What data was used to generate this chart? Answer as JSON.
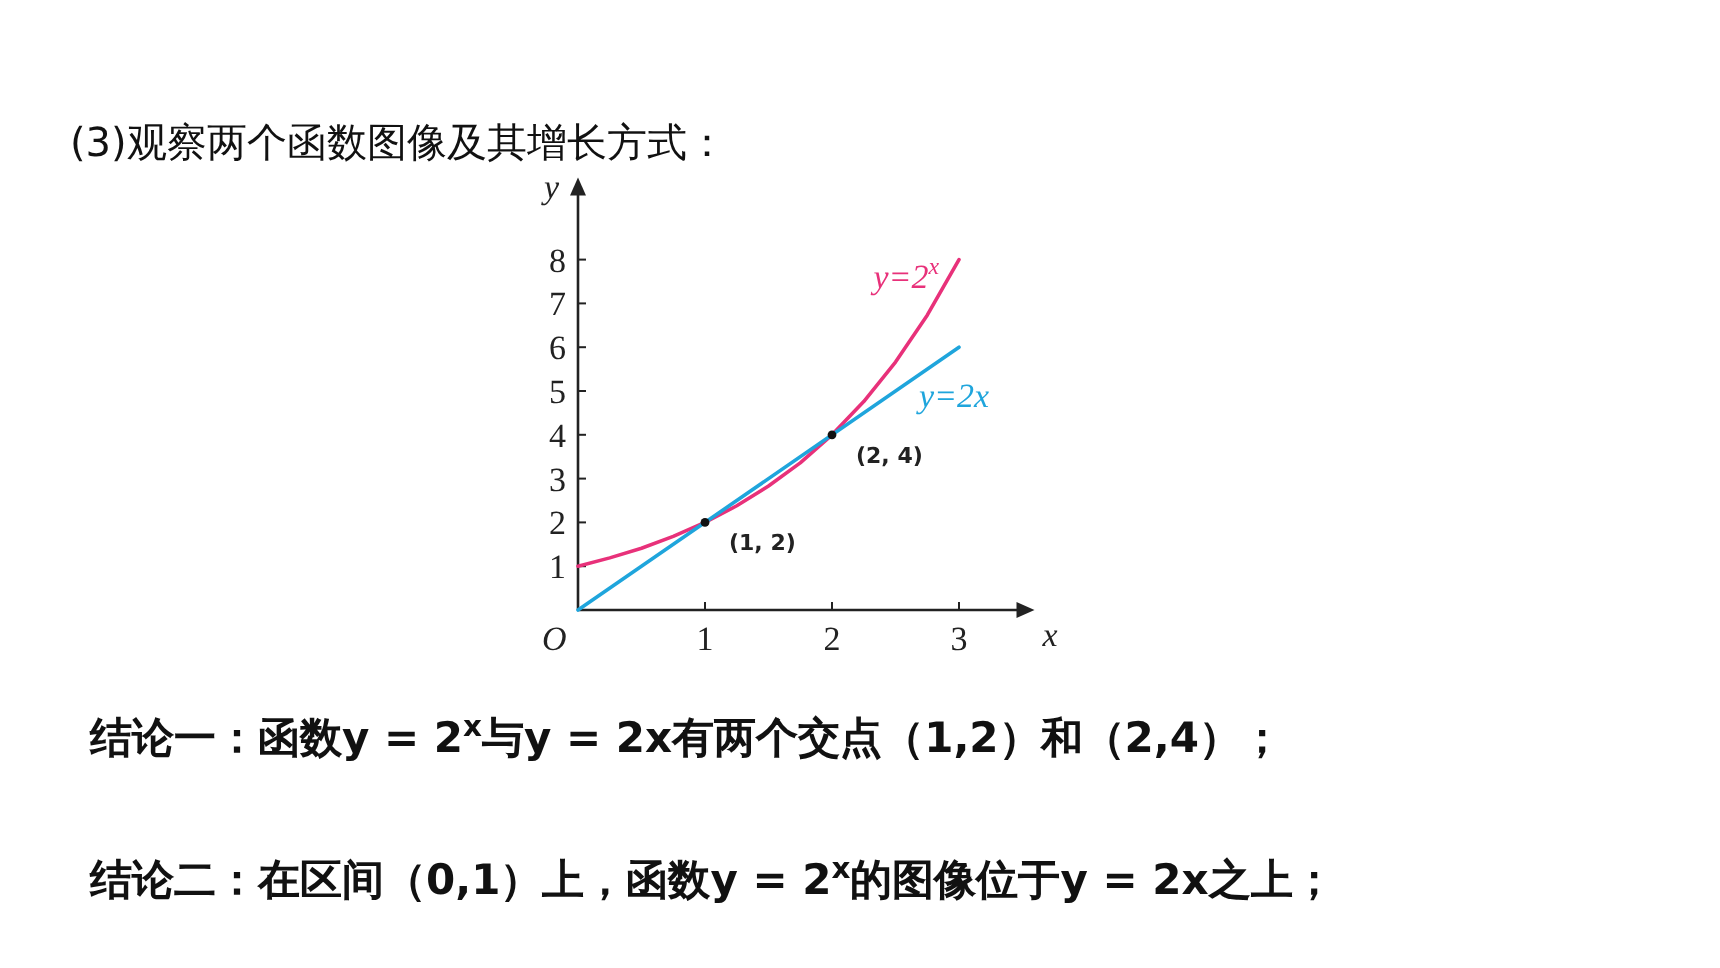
{
  "chart_data": {
    "type": "line",
    "title": "(3)观察两个函数图像及其增长方式：",
    "xlabel": "x",
    "ylabel": "y",
    "xlim": [
      0,
      3.5
    ],
    "ylim": [
      0,
      9.6
    ],
    "xticks": [
      1,
      2,
      3
    ],
    "yticks": [
      1,
      2,
      3,
      4,
      5,
      6,
      7,
      8
    ],
    "x": [
      0,
      0.25,
      0.5,
      0.75,
      1,
      1.25,
      1.5,
      1.75,
      2,
      2.25,
      2.5,
      2.75,
      3
    ],
    "series": [
      {
        "name": "y=2$^{x}$",
        "color": "#e8317a",
        "values": [
          1,
          1.19,
          1.41,
          1.68,
          2,
          2.38,
          2.83,
          3.36,
          4,
          4.76,
          5.66,
          6.73,
          8
        ]
      },
      {
        "name": "y=2x",
        "color": "#1fa5dc",
        "x": [
          0,
          3
        ],
        "values": [
          0,
          6
        ]
      },
      {
        "type": "scatter",
        "color": "#111111",
        "x": [
          1,
          2
        ],
        "values": [
          2,
          4
        ]
      }
    ],
    "grid": false,
    "annotations": [
      {
        "text": "O",
        "x": 0,
        "y": 0
      },
      {
        "text": "(1, 2)",
        "x": 1,
        "y": 2
      },
      {
        "text": "(2, 4)",
        "x": 2,
        "y": 4
      },
      "结论一：函数y = 2$^{x}$与y = 2x有两个交点（1,2）和（2,4）；",
      "结论二：在区间（0,1）上，函数y = 2$^{x}$的图像位于y = 2x之上；"
    ]
  }
}
